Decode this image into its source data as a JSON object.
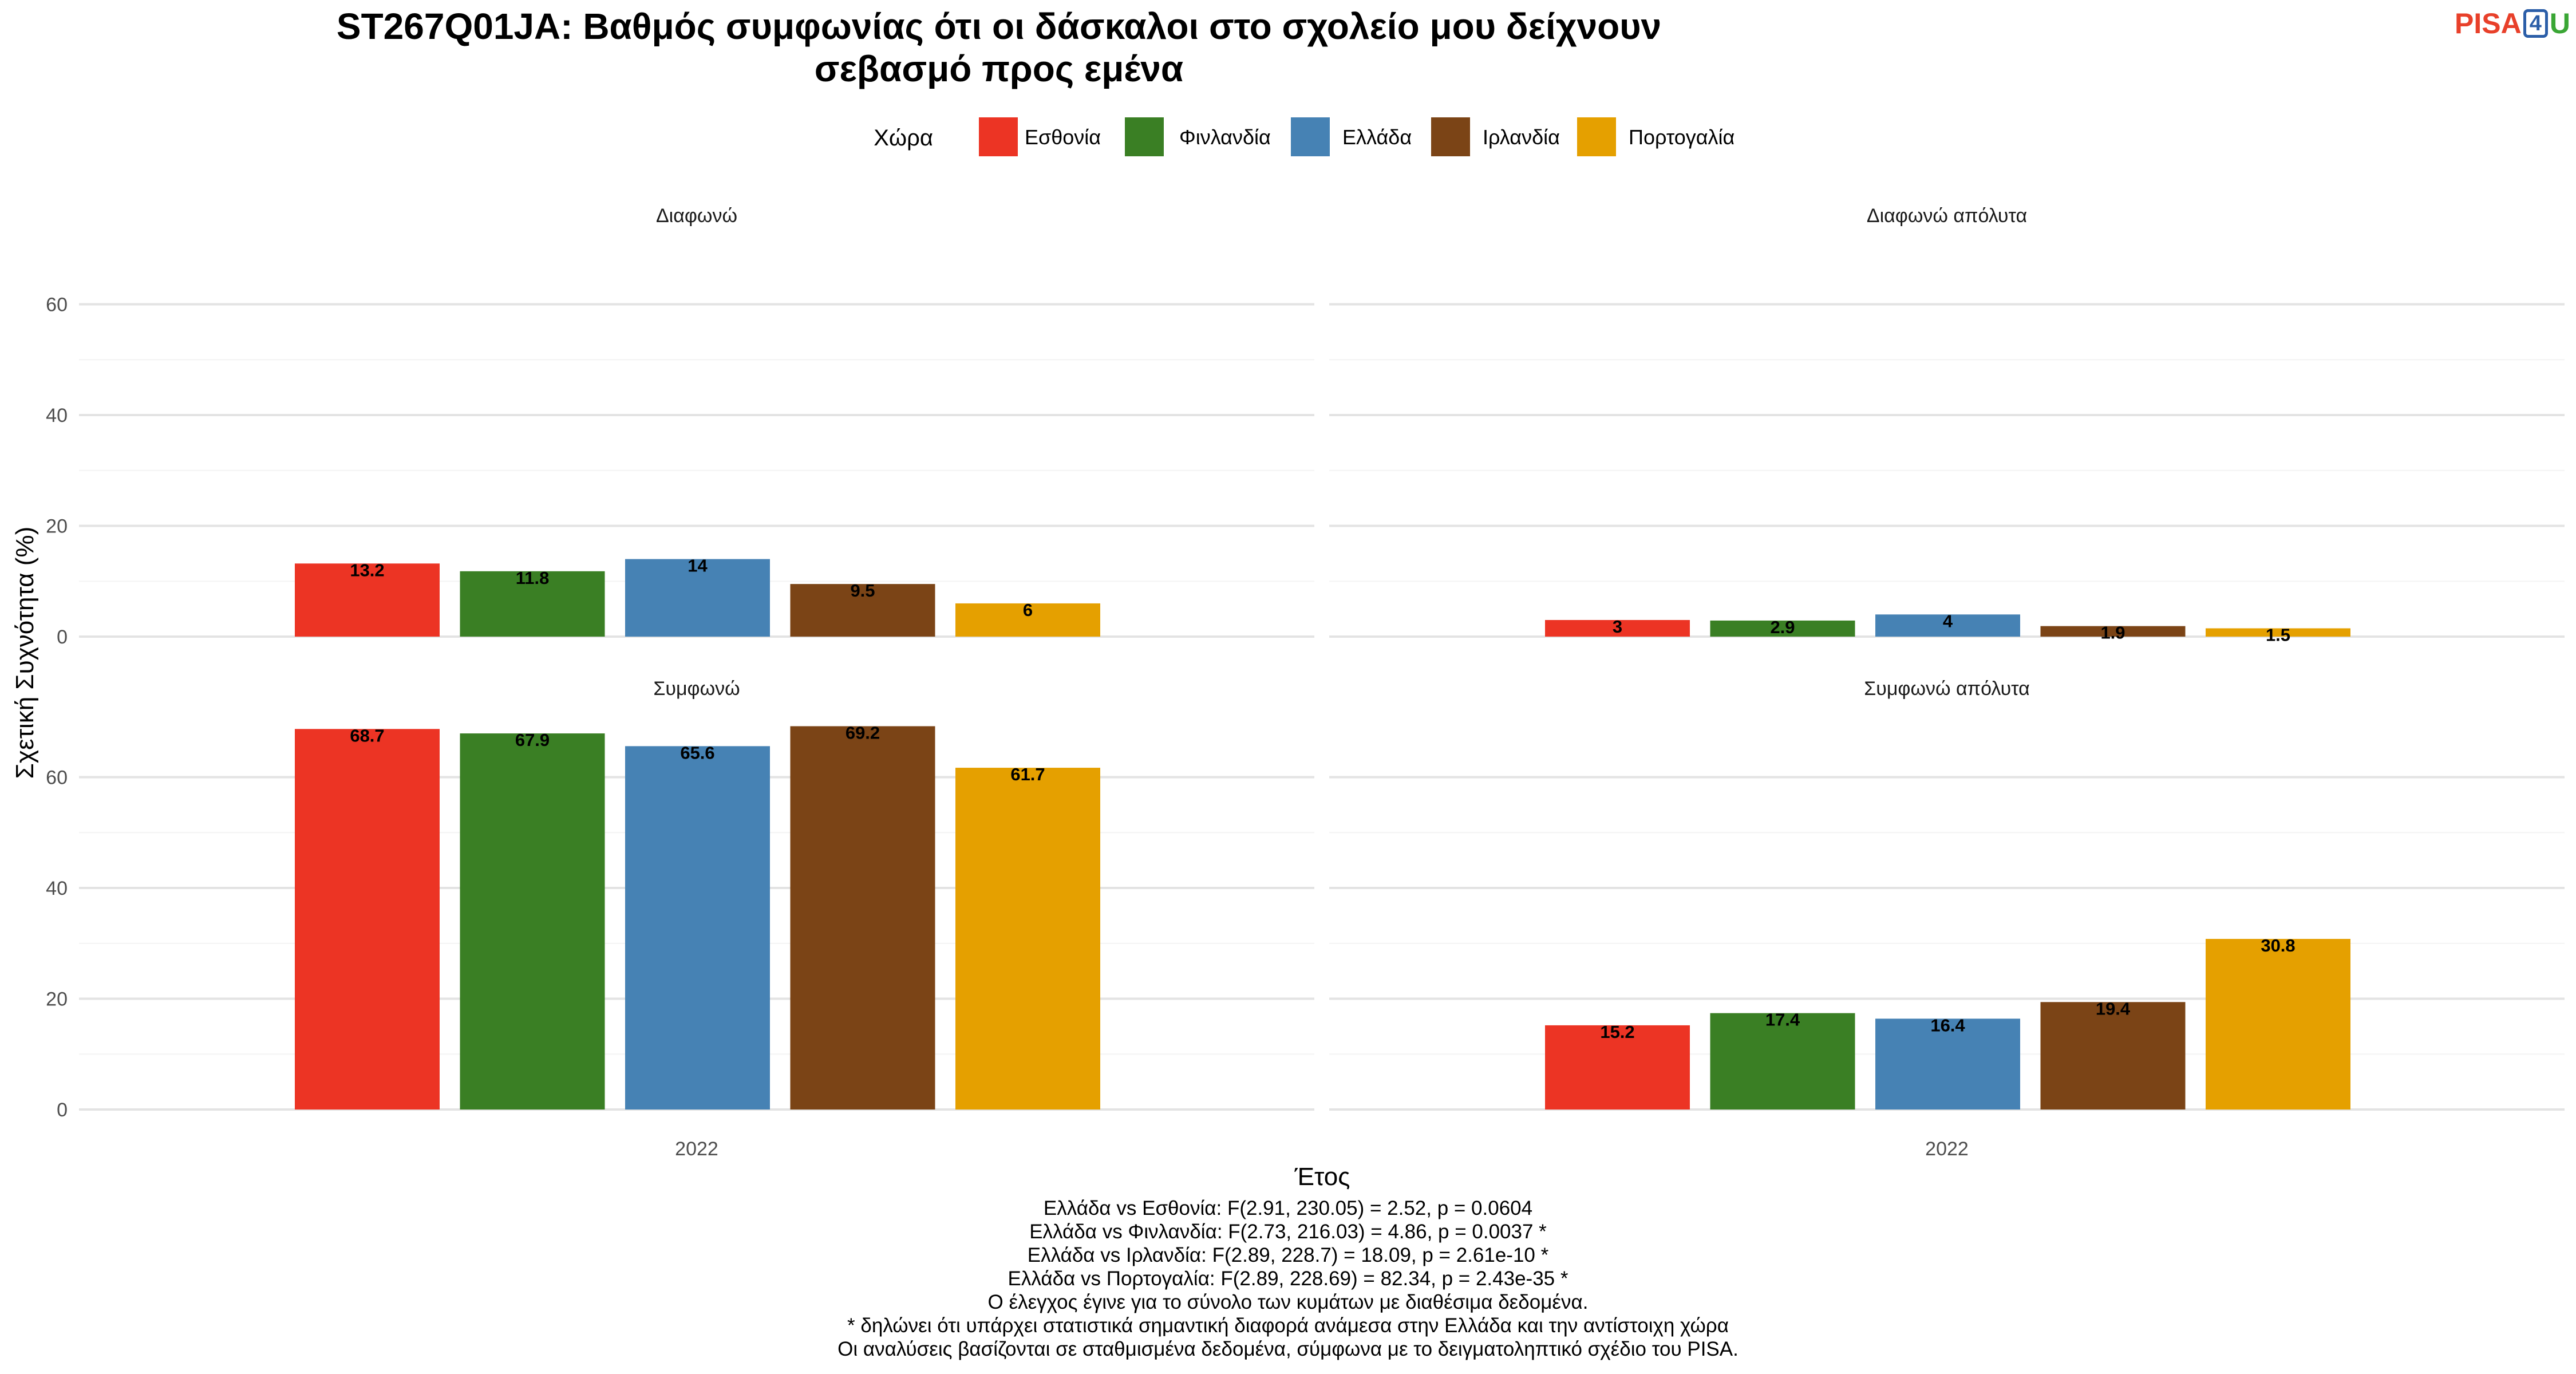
{
  "logo": {
    "part1": "PISA",
    "part2": "4",
    "part3": "U",
    "colors": {
      "part1": "#e8402a",
      "part2": "#2b5ea8",
      "part3": "#3aa635"
    }
  },
  "chart_data": {
    "type": "bar",
    "title_line1": "ST267Q01JA: Βαθμός συμφωνίας ότι οι δάσκαλοι στο σχολείο μου δείχνουν",
    "title_line2": "σεβασμό προς εμένα",
    "legend_title": "Χώρα",
    "legend_position": "top",
    "xlabel": "Έτος",
    "ylabel": "Σχετική Συχνότητα (%)",
    "ylim": [
      0,
      70
    ],
    "yticks": [
      0,
      20,
      40,
      60
    ],
    "grid": true,
    "x_category": "2022",
    "series": [
      {
        "name": "Εσθονία",
        "color": "#ec3424"
      },
      {
        "name": "Φινλανδία",
        "color": "#3a7f24"
      },
      {
        "name": "Ελλάδα",
        "color": "#4682b4"
      },
      {
        "name": "Ιρλανδία",
        "color": "#7b4416"
      },
      {
        "name": "Πορτογαλία",
        "color": "#e5a000"
      }
    ],
    "panels": [
      {
        "label": "Διαφωνώ",
        "values": [
          13.2,
          11.8,
          14,
          9.5,
          6
        ],
        "labels": [
          "13.2",
          "11.8",
          "14",
          "9.5",
          "6"
        ]
      },
      {
        "label": "Διαφωνώ απόλυτα",
        "values": [
          3,
          2.9,
          4,
          1.9,
          1.5
        ],
        "labels": [
          "3",
          "2.9",
          "4",
          "1.9",
          "1.5"
        ]
      },
      {
        "label": "Συμφωνώ",
        "values": [
          68.7,
          67.9,
          65.6,
          69.2,
          61.7
        ],
        "labels": [
          "68.7",
          "67.9",
          "65.6",
          "69.2",
          "61.7"
        ]
      },
      {
        "label": "Συμφωνώ απόλυτα",
        "values": [
          15.2,
          17.4,
          16.4,
          19.4,
          30.8
        ],
        "labels": [
          "15.2",
          "17.4",
          "16.4",
          "19.4",
          "30.8"
        ]
      }
    ]
  },
  "caption": [
    "Ελλάδα vs Εσθονία: F(2.91, 230.05) = 2.52, p = 0.0604",
    "Ελλάδα vs Φινλανδία: F(2.73, 216.03) = 4.86, p = 0.0037 *",
    "Ελλάδα vs Ιρλανδία: F(2.89, 228.7) = 18.09, p = 2.61e-10 *",
    "Ελλάδα vs Πορτογαλία: F(2.89, 228.69) = 82.34, p = 2.43e-35 *",
    "Ο έλεγχος έγινε για το σύνολο των κυμάτων με διαθέσιμα δεδομένα.",
    "* δηλώνει ότι υπάρχει στατιστικά σημαντική διαφορά ανάμεσα στην Ελλάδα και την αντίστοιχη χώρα",
    "Οι αναλύσεις βασίζονται σε σταθμισμένα δεδομένα, σύμφωνα με το δειγματοληπτικό σχέδιο του PISA."
  ]
}
